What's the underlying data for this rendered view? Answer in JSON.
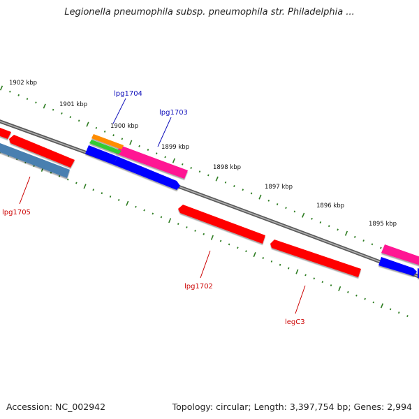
{
  "title": "Legionella pneumophila subsp. pneumophila str. Philadelphia ...",
  "footer": {
    "accession": "Accession: NC_002942",
    "info": "Topology: circular; Length: 3,397,754 bp; Genes: 2,994"
  },
  "colors": {
    "backbone": "#7a7a7a",
    "tick": "#2e7d22",
    "red": "#ff0000",
    "blue": "#0000ff",
    "pink": "#ff1493",
    "steel": "#4a7fb0",
    "orange": "#ff8c00",
    "green": "#33cc33",
    "label_red": "#cc0000",
    "label_blue": "#1010bb"
  },
  "kbp_labels": [
    "1902 kbp",
    "1901 kbp",
    "1900 kbp",
    "1899 kbp",
    "1898 kbp",
    "1897 kbp",
    "1896 kbp",
    "1895 kbp"
  ],
  "genes": [
    {
      "name": "lpg1704",
      "color_key": "label_blue",
      "fill_key": "orange"
    },
    {
      "name": "lpg1703",
      "color_key": "label_blue",
      "fill_key": "pink"
    },
    {
      "name": "lpg1705",
      "color_key": "label_red",
      "fill_key": "red"
    },
    {
      "name": "lpg1702",
      "color_key": "label_red",
      "fill_key": "red"
    },
    {
      "name": "legC3",
      "color_key": "label_red",
      "fill_key": "red"
    }
  ]
}
